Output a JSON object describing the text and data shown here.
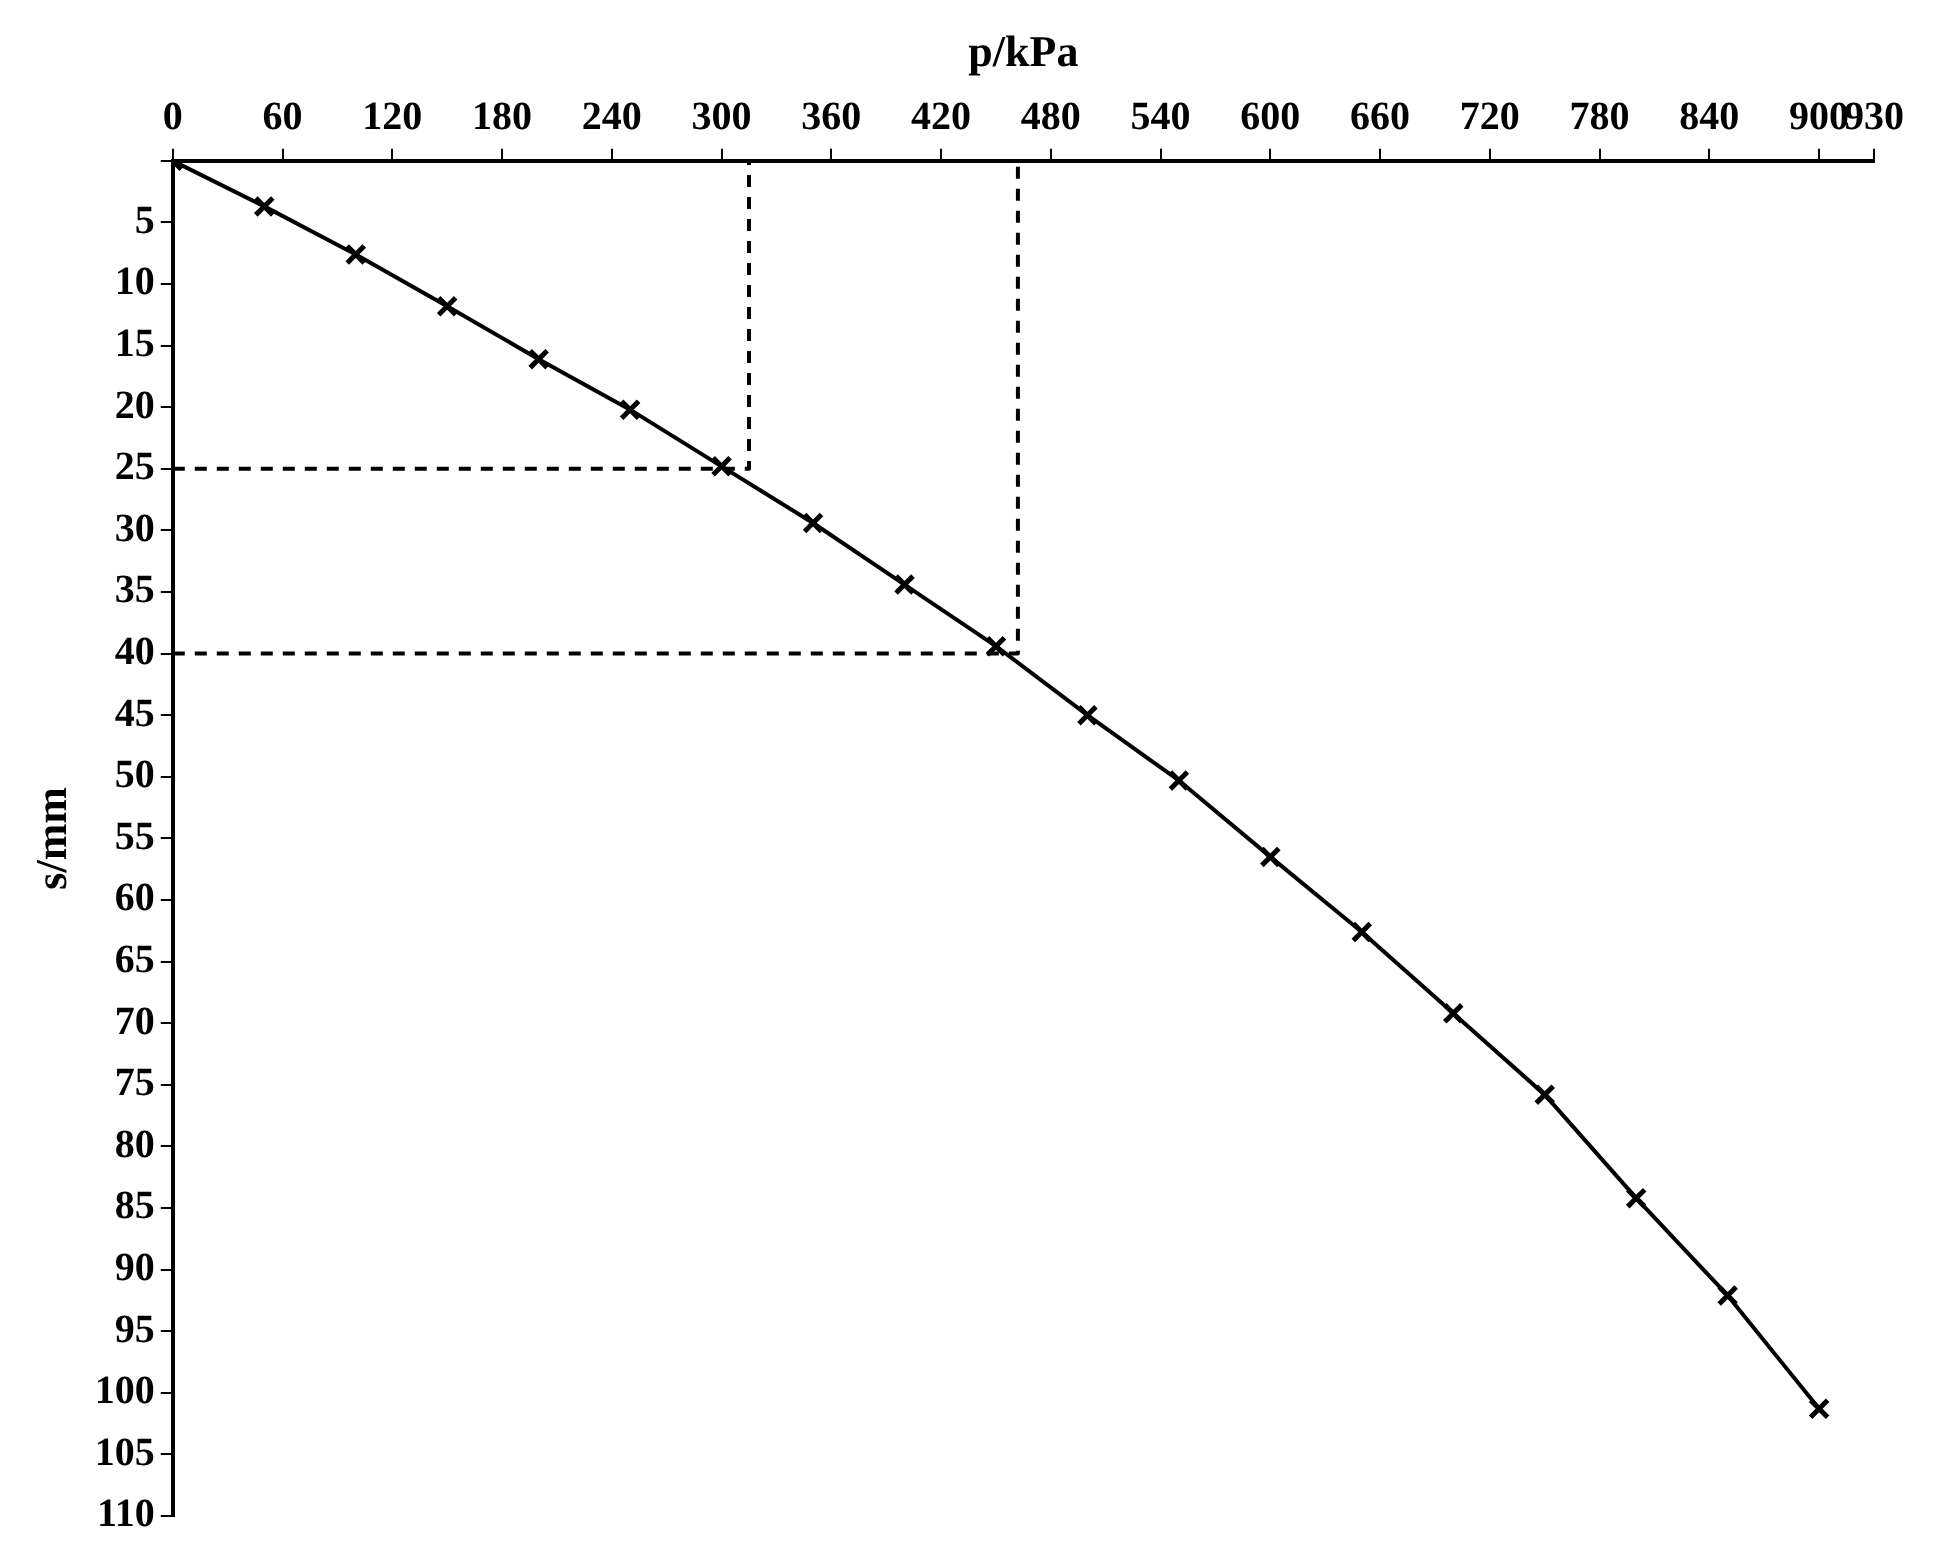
{
  "chart_data": {
    "type": "line",
    "xlabel": "p/kPa",
    "ylabel": "s/mm",
    "xlim": [
      0,
      930
    ],
    "xticks": [
      0,
      60,
      120,
      180,
      240,
      300,
      360,
      420,
      480,
      540,
      600,
      660,
      720,
      780,
      840,
      900,
      930
    ],
    "ylim": [
      110,
      0
    ],
    "yticks": [
      {
        "value": 0,
        "label": null
      },
      5,
      10,
      15,
      20,
      25,
      30,
      35,
      40,
      45,
      50,
      55,
      60,
      65,
      70,
      75,
      80,
      85,
      90,
      95,
      100,
      105,
      110
    ],
    "grid": false,
    "legend": false,
    "series": [
      {
        "color": "#000000",
        "marker": "cross",
        "line_style": "solid",
        "x": [
          0,
          50,
          100,
          150,
          200,
          250,
          300,
          350,
          400,
          450,
          500,
          550,
          600,
          650,
          700,
          750,
          800,
          850,
          900
        ],
        "values": [
          0,
          3.7,
          7.6,
          11.8,
          16.1,
          20.2,
          24.8,
          29.4,
          34.4,
          39.4,
          45.0,
          50.3,
          56.5,
          62.6,
          69.2,
          75.8,
          84.2,
          92.1,
          101.3
        ]
      },
      {
        "color": "#000000",
        "marker": "none",
        "line_style": "dashed",
        "x": [
          0,
          315,
          315
        ],
        "values": [
          25,
          25,
          0
        ]
      },
      {
        "color": "#000000",
        "marker": "none",
        "line_style": "dashed",
        "x": [
          0,
          462,
          462
        ],
        "values": [
          40,
          40,
          0
        ]
      }
    ]
  }
}
